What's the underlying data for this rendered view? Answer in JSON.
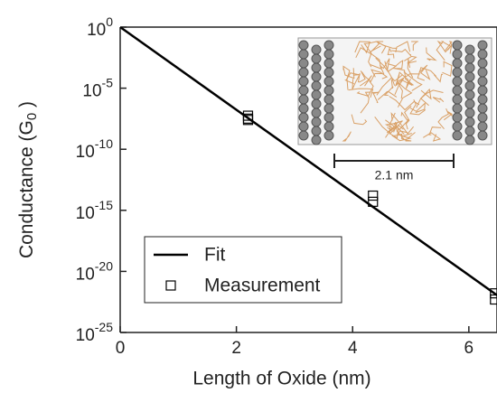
{
  "chart_data": {
    "type": "line",
    "xlabel": "Length of Oxide (nm)",
    "ylabel": "Conductance (G_0)",
    "xlim": [
      0,
      6.5
    ],
    "xticks": [
      0,
      2,
      4,
      6
    ],
    "ylim": [
      1e-25,
      1
    ],
    "yscale": "log",
    "yticks": [
      {
        "value": 1,
        "label": "10^0"
      },
      {
        "value": 1e-05,
        "label": "10^-5"
      },
      {
        "value": 1e-10,
        "label": "10^-10"
      },
      {
        "value": 1e-15,
        "label": "10^-15"
      },
      {
        "value": 1e-20,
        "label": "10^-20"
      },
      {
        "value": 1e-25,
        "label": "10^-25"
      }
    ],
    "legend": "lower left",
    "annotations": [
      "2.1 nm"
    ],
    "series": [
      {
        "name": "Fit",
        "style": "line",
        "color": "#000000",
        "x": [
          0,
          6.5
        ],
        "values": [
          1,
          1e-22
        ]
      },
      {
        "name": "Measurement",
        "style": "marker",
        "color": "#000000",
        "x": [
          2.2,
          2.2,
          2.2,
          4.35,
          4.35,
          6.45,
          6.45
        ],
        "values": [
          5.6e-08,
          3.2e-08,
          2.5e-08,
          1.6e-14,
          5e-15,
          1.6e-22,
          5e-23
        ]
      }
    ]
  }
}
